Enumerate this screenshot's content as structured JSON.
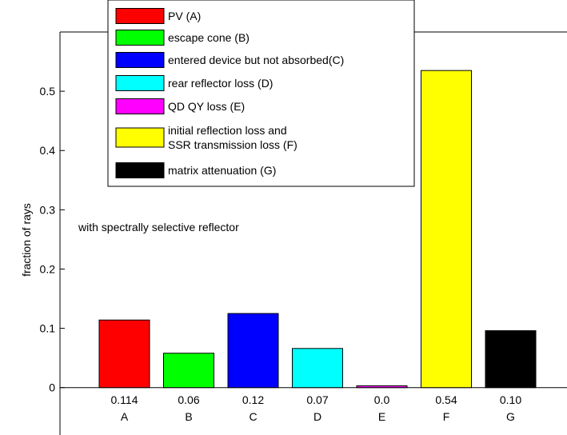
{
  "chart_data": {
    "type": "bar",
    "title": "",
    "xlabel": "",
    "ylabel": "fraction of rays",
    "ylim": [
      -0.08,
      0.6
    ],
    "yticks": [
      0,
      0.1,
      0.2,
      0.3,
      0.4,
      0.5
    ],
    "ytick_labels": [
      "0",
      "0.1",
      "0.2",
      "0.3",
      "0.4",
      "0.5"
    ],
    "categories": [
      "A",
      "B",
      "C",
      "D",
      "E",
      "F",
      "G"
    ],
    "values": [
      0.114,
      0.058,
      0.125,
      0.066,
      0.003,
      0.535,
      0.096
    ],
    "value_labels": [
      "0.114",
      "0.06",
      "0.12",
      "0.07",
      "0.0",
      "0.54",
      "0.10"
    ],
    "colors": [
      "#ff0000",
      "#00ff00",
      "#0000ff",
      "#00ffff",
      "#ff00ff",
      "#ffff00",
      "#000000"
    ],
    "annotation": "with spectrally selective reflector",
    "grid": false,
    "legend_position": "top-left",
    "legend": [
      {
        "label": "PV (A)",
        "color": "#ff0000"
      },
      {
        "label": "escape cone (B)",
        "color": "#00ff00"
      },
      {
        "label": "entered device but not absorbed(C)",
        "color": "#0000ff"
      },
      {
        "label": "rear reflector loss (D)",
        "color": "#00ffff"
      },
      {
        "label": "QD QY loss (E)",
        "color": "#ff00ff"
      },
      {
        "label": "initial reflection loss and|SSR transmission loss (F)",
        "color": "#ffff00"
      },
      {
        "label": "matrix attenuation (G)",
        "color": "#000000"
      }
    ]
  }
}
